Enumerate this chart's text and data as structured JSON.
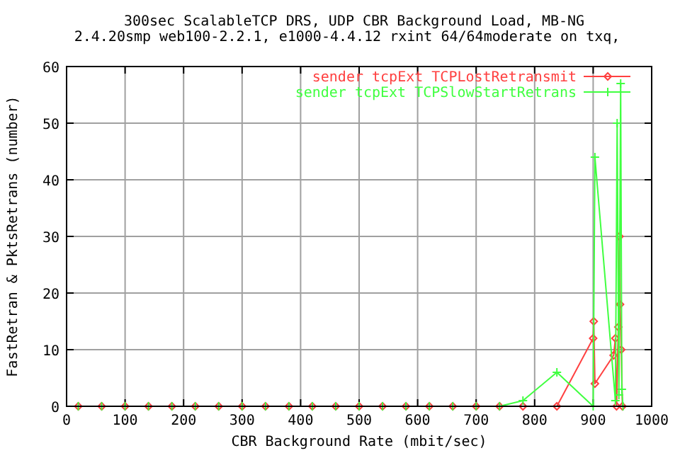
{
  "chart_data": {
    "type": "line",
    "title": "300sec ScalableTCP DRS, UDP CBR Background Load, MB-NG",
    "subtitle": "2.4.20smp web100-2.2.1, e1000-4.4.12 rxint 64/64moderate on txq,",
    "xlabel": "CBR Background Rate (mbit/sec)",
    "ylabel": "FastRetran & PktsRetrans (number)",
    "xlim": [
      0,
      1000
    ],
    "xticks": [
      0,
      100,
      200,
      300,
      400,
      500,
      600,
      700,
      800,
      900,
      1000
    ],
    "ylim": [
      0,
      60
    ],
    "yticks": [
      0,
      10,
      20,
      30,
      40,
      50,
      60
    ],
    "grid": true,
    "legend": "top right",
    "series": [
      {
        "name": "sender tcpExt TCPLostRetransmit",
        "color": "#ff4040",
        "marker": "diamond",
        "x": [
          20,
          60,
          100,
          140,
          180,
          220,
          260,
          300,
          340,
          380,
          420,
          460,
          500,
          540,
          580,
          620,
          660,
          700,
          740,
          780,
          838,
          900,
          901,
          903,
          935,
          938,
          940,
          943,
          945,
          946,
          948,
          950
        ],
        "values": [
          0,
          0,
          0,
          0,
          0,
          0,
          0,
          0,
          0,
          0,
          0,
          0,
          0,
          0,
          0,
          0,
          0,
          0,
          0,
          0,
          0,
          12,
          15,
          4,
          9,
          12,
          0,
          14,
          30,
          18,
          10,
          0
        ]
      },
      {
        "name": "sender tcpExt TCPSlowStartRetrans",
        "color": "#40ff40",
        "marker": "cross",
        "x": [
          20,
          60,
          100,
          140,
          180,
          220,
          260,
          300,
          340,
          380,
          420,
          460,
          500,
          540,
          580,
          620,
          660,
          700,
          740,
          780,
          838,
          900,
          903,
          938,
          941,
          944,
          947,
          949,
          951
        ],
        "values": [
          0,
          0,
          0,
          0,
          0,
          0,
          0,
          0,
          0,
          0,
          0,
          0,
          0,
          0,
          0,
          0,
          0,
          0,
          0,
          1,
          6,
          0,
          44,
          1,
          50,
          2,
          57,
          3,
          0
        ]
      }
    ]
  }
}
